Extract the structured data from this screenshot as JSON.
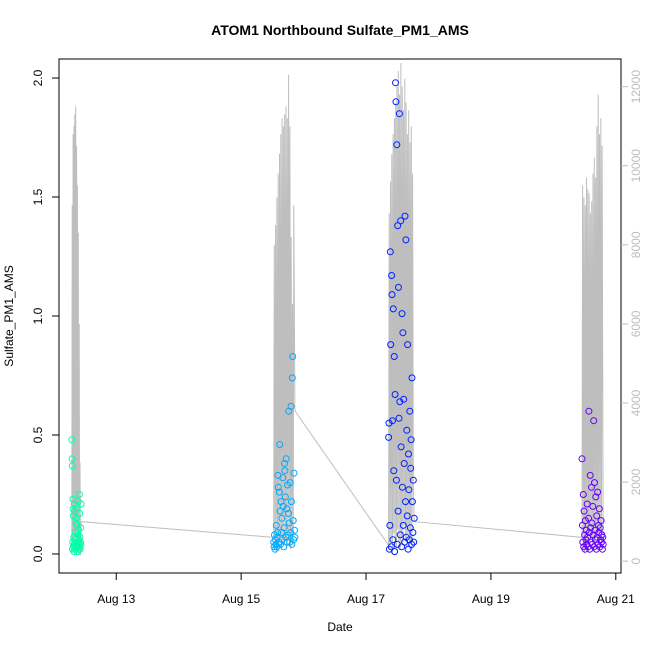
{
  "chart_data": {
    "type": "scatter",
    "title": "ATOM1 Northbound Sulfate_PM1_AMS",
    "xlabel": "Date",
    "ylabel": "Sulfate_PM1_AMS",
    "xlim": [
      "2016-08-12T02:00",
      "2016-08-21T02:00"
    ],
    "ylim": [
      -0.08,
      2.08
    ],
    "y2lim": [
      -300,
      12700
    ],
    "x_ticks": [
      {
        "date": "2016-08-13",
        "label": "Aug 13"
      },
      {
        "date": "2016-08-15",
        "label": "Aug 15"
      },
      {
        "date": "2016-08-17",
        "label": "Aug 17"
      },
      {
        "date": "2016-08-19",
        "label": "Aug 19"
      },
      {
        "date": "2016-08-21",
        "label": "Aug 21"
      }
    ],
    "y_ticks": [
      "0.0",
      "0.5",
      "1.0",
      "1.5",
      "2.0"
    ],
    "y2_ticks": [
      "0",
      "2000",
      "4000",
      "6000",
      "8000",
      "10000",
      "12000"
    ],
    "grid": false,
    "legend": "none",
    "colors": {
      "flight1": "#00ffaa",
      "flight2": "#00aaff",
      "flight3": "#0022ff",
      "flight4": "#6600ff",
      "altitude_line": "#bebebe",
      "secondary_axis": "#bebebe"
    },
    "series": [
      {
        "role": "points",
        "color": "#00ffaa",
        "x": [
          "2016-08-12T06:55",
          "2016-08-12T07:00",
          "2016-08-12T07:05",
          "2016-08-12T07:10",
          "2016-08-12T07:15",
          "2016-08-12T07:20",
          "2016-08-12T07:25",
          "2016-08-12T07:30",
          "2016-08-12T07:35",
          "2016-08-12T07:40",
          "2016-08-12T07:45",
          "2016-08-12T07:50",
          "2016-08-12T07:55",
          "2016-08-12T08:00",
          "2016-08-12T08:05",
          "2016-08-12T08:10",
          "2016-08-12T08:15",
          "2016-08-12T08:20",
          "2016-08-12T08:25",
          "2016-08-12T08:30",
          "2016-08-12T08:35",
          "2016-08-12T08:40",
          "2016-08-12T08:45",
          "2016-08-12T08:50",
          "2016-08-12T08:55",
          "2016-08-12T09:00",
          "2016-08-12T09:05",
          "2016-08-12T09:10",
          "2016-08-12T09:15",
          "2016-08-12T09:20",
          "2016-08-12T09:25",
          "2016-08-12T09:30",
          "2016-08-12T09:35",
          "2016-08-12T09:40",
          "2016-08-12T09:45",
          "2016-08-12T09:50",
          "2016-08-12T09:55",
          "2016-08-12T10:00",
          "2016-08-12T10:05",
          "2016-08-12T10:10",
          "2016-08-12T10:15",
          "2016-08-12T10:20",
          "2016-08-12T10:25",
          "2016-08-12T10:30"
        ],
        "y": [
          0.48,
          0.4,
          0.37,
          0.02,
          0.05,
          0.23,
          0.19,
          0.16,
          0.03,
          0.07,
          0.01,
          0.04,
          0.21,
          0.18,
          0.02,
          0.06,
          0.03,
          0.09,
          0.05,
          0.15,
          0.13,
          0.02,
          0.07,
          0.04,
          0.19,
          0.12,
          0.01,
          0.03,
          0.08,
          0.05,
          0.22,
          0.1,
          0.02,
          0.06,
          0.04,
          0.25,
          0.17,
          0.03,
          0.07,
          0.02,
          0.05,
          0.11,
          0.04,
          0.21
        ]
      },
      {
        "role": "points",
        "color": "#00aaff",
        "x": [
          "2016-08-15T12:30",
          "2016-08-15T12:40",
          "2016-08-15T12:50",
          "2016-08-15T13:00",
          "2016-08-15T13:10",
          "2016-08-15T13:20",
          "2016-08-15T13:30",
          "2016-08-15T13:40",
          "2016-08-15T13:50",
          "2016-08-15T14:00",
          "2016-08-15T14:10",
          "2016-08-15T14:20",
          "2016-08-15T14:30",
          "2016-08-15T14:40",
          "2016-08-15T14:50",
          "2016-08-15T15:00",
          "2016-08-15T15:10",
          "2016-08-15T15:20",
          "2016-08-15T15:30",
          "2016-08-15T15:40",
          "2016-08-15T15:50",
          "2016-08-15T16:00",
          "2016-08-15T16:10",
          "2016-08-15T16:20",
          "2016-08-15T16:30",
          "2016-08-15T16:40",
          "2016-08-15T16:50",
          "2016-08-15T17:00",
          "2016-08-15T17:10",
          "2016-08-15T17:20",
          "2016-08-15T17:30",
          "2016-08-15T17:40",
          "2016-08-15T17:50",
          "2016-08-15T18:00",
          "2016-08-15T18:10",
          "2016-08-15T18:20",
          "2016-08-15T18:30",
          "2016-08-15T18:40",
          "2016-08-15T18:50",
          "2016-08-15T19:00",
          "2016-08-15T19:10",
          "2016-08-15T19:20",
          "2016-08-15T19:30",
          "2016-08-15T19:40",
          "2016-08-15T19:50",
          "2016-08-15T20:00",
          "2016-08-15T20:10",
          "2016-08-15T20:20",
          "2016-08-15T20:30",
          "2016-08-15T20:40"
        ],
        "y": [
          0.05,
          0.03,
          0.08,
          0.02,
          0.06,
          0.04,
          0.12,
          0.03,
          0.07,
          0.09,
          0.33,
          0.28,
          0.05,
          0.26,
          0.46,
          0.18,
          0.04,
          0.22,
          0.09,
          0.15,
          0.06,
          0.32,
          0.2,
          0.03,
          0.11,
          0.38,
          0.35,
          0.24,
          0.07,
          0.4,
          0.19,
          0.05,
          0.29,
          0.08,
          0.17,
          0.6,
          0.13,
          0.05,
          0.3,
          0.09,
          0.62,
          0.22,
          0.04,
          0.74,
          0.83,
          0.14,
          0.06,
          0.34,
          0.1,
          0.07
        ]
      },
      {
        "role": "points",
        "color": "#0022ff",
        "x": [
          "2016-08-17T08:40",
          "2016-08-17T08:50",
          "2016-08-17T09:00",
          "2016-08-17T09:10",
          "2016-08-17T09:20",
          "2016-08-17T09:30",
          "2016-08-17T09:40",
          "2016-08-17T09:50",
          "2016-08-17T10:00",
          "2016-08-17T10:10",
          "2016-08-17T10:20",
          "2016-08-17T10:30",
          "2016-08-17T10:40",
          "2016-08-17T10:50",
          "2016-08-17T11:00",
          "2016-08-17T11:10",
          "2016-08-17T11:20",
          "2016-08-17T11:30",
          "2016-08-17T11:40",
          "2016-08-17T11:50",
          "2016-08-17T12:00",
          "2016-08-17T12:10",
          "2016-08-17T12:20",
          "2016-08-17T12:30",
          "2016-08-17T12:40",
          "2016-08-17T12:50",
          "2016-08-17T13:00",
          "2016-08-17T13:10",
          "2016-08-17T13:20",
          "2016-08-17T13:30",
          "2016-08-17T13:40",
          "2016-08-17T13:50",
          "2016-08-17T14:00",
          "2016-08-17T14:10",
          "2016-08-17T14:20",
          "2016-08-17T14:30",
          "2016-08-17T14:40",
          "2016-08-17T14:50",
          "2016-08-17T15:00",
          "2016-08-17T15:10",
          "2016-08-17T15:20",
          "2016-08-17T15:30",
          "2016-08-17T15:40",
          "2016-08-17T15:50",
          "2016-08-17T16:00",
          "2016-08-17T16:10",
          "2016-08-17T16:20",
          "2016-08-17T16:30",
          "2016-08-17T16:40",
          "2016-08-17T16:50",
          "2016-08-17T17:00",
          "2016-08-17T17:10",
          "2016-08-17T17:20",
          "2016-08-17T17:30",
          "2016-08-17T17:40",
          "2016-08-17T17:50",
          "2016-08-17T18:00",
          "2016-08-17T18:10",
          "2016-08-17T18:20",
          "2016-08-17T18:30"
        ],
        "y": [
          0.49,
          0.55,
          0.02,
          0.12,
          1.27,
          0.88,
          0.03,
          1.17,
          1.09,
          0.56,
          0.06,
          1.03,
          0.35,
          0.83,
          0.01,
          0.67,
          1.98,
          1.9,
          0.31,
          1.72,
          0.04,
          1.38,
          0.18,
          1.12,
          0.57,
          1.85,
          0.64,
          0.08,
          1.4,
          0.45,
          0.03,
          1.01,
          0.28,
          0.93,
          0.12,
          0.65,
          0.38,
          0.05,
          1.42,
          0.22,
          1.32,
          0.07,
          0.52,
          0.16,
          0.88,
          0.02,
          0.42,
          0.27,
          0.06,
          0.6,
          0.11,
          0.36,
          0.48,
          0.04,
          0.74,
          0.22,
          0.09,
          0.31,
          0.05,
          0.15
        ]
      },
      {
        "role": "points",
        "color": "#6600ff",
        "x": [
          "2016-08-20T11:00",
          "2016-08-20T11:10",
          "2016-08-20T11:20",
          "2016-08-20T11:30",
          "2016-08-20T11:40",
          "2016-08-20T11:50",
          "2016-08-20T12:00",
          "2016-08-20T12:10",
          "2016-08-20T12:20",
          "2016-08-20T12:30",
          "2016-08-20T12:40",
          "2016-08-20T12:50",
          "2016-08-20T13:00",
          "2016-08-20T13:10",
          "2016-08-20T13:20",
          "2016-08-20T13:30",
          "2016-08-20T13:40",
          "2016-08-20T13:50",
          "2016-08-20T14:00",
          "2016-08-20T14:10",
          "2016-08-20T14:20",
          "2016-08-20T14:30",
          "2016-08-20T14:40",
          "2016-08-20T14:50",
          "2016-08-20T15:00",
          "2016-08-20T15:10",
          "2016-08-20T15:20",
          "2016-08-20T15:30",
          "2016-08-20T15:40",
          "2016-08-20T15:50",
          "2016-08-20T16:00",
          "2016-08-20T16:10",
          "2016-08-20T16:20",
          "2016-08-20T16:30",
          "2016-08-20T16:40",
          "2016-08-20T16:50",
          "2016-08-20T17:00",
          "2016-08-20T17:10",
          "2016-08-20T17:20",
          "2016-08-20T17:30",
          "2016-08-20T17:40",
          "2016-08-20T17:50",
          "2016-08-20T18:00",
          "2016-08-20T18:10",
          "2016-08-20T18:20",
          "2016-08-20T18:30",
          "2016-08-20T18:40",
          "2016-08-20T18:50",
          "2016-08-20T19:00",
          "2016-08-20T19:10"
        ],
        "y": [
          0.4,
          0.12,
          0.05,
          0.25,
          0.03,
          0.18,
          0.08,
          0.02,
          0.14,
          0.06,
          0.1,
          0.04,
          0.21,
          0.07,
          0.03,
          0.15,
          0.6,
          0.09,
          0.02,
          0.33,
          0.11,
          0.05,
          0.28,
          0.13,
          0.04,
          0.2,
          0.08,
          0.56,
          0.03,
          0.3,
          0.1,
          0.06,
          0.24,
          0.02,
          0.16,
          0.07,
          0.26,
          0.04,
          0.12,
          0.09,
          0.19,
          0.03,
          0.11,
          0.06,
          0.14,
          0.05,
          0.08,
          0.02,
          0.07,
          0.04
        ]
      },
      {
        "role": "secondary-line",
        "axis": "right",
        "color": "#bebebe",
        "x": [
          "2016-08-12T06:55",
          "2016-08-12T07:05",
          "2016-08-12T07:15",
          "2016-08-12T07:25",
          "2016-08-12T07:35",
          "2016-08-12T07:45",
          "2016-08-12T07:55",
          "2016-08-12T08:05",
          "2016-08-12T08:15",
          "2016-08-12T08:25",
          "2016-08-12T08:35",
          "2016-08-12T08:45",
          "2016-08-12T08:55",
          "2016-08-12T09:05",
          "2016-08-12T09:15",
          "2016-08-12T09:25",
          "2016-08-12T09:35",
          "2016-08-12T09:45",
          "2016-08-12T09:55",
          "2016-08-12T10:05",
          "2016-08-12T10:15",
          "2016-08-12T10:30",
          "2016-08-15T12:30",
          "2016-08-15T12:45",
          "2016-08-15T13:00",
          "2016-08-15T13:15",
          "2016-08-15T13:30",
          "2016-08-15T13:45",
          "2016-08-15T14:00",
          "2016-08-15T14:15",
          "2016-08-15T14:30",
          "2016-08-15T14:45",
          "2016-08-15T15:00",
          "2016-08-15T15:15",
          "2016-08-15T15:30",
          "2016-08-15T15:45",
          "2016-08-15T16:00",
          "2016-08-15T16:15",
          "2016-08-15T16:30",
          "2016-08-15T16:45",
          "2016-08-15T17:00",
          "2016-08-15T17:15",
          "2016-08-15T17:30",
          "2016-08-15T17:45",
          "2016-08-15T18:00",
          "2016-08-15T18:15",
          "2016-08-15T18:30",
          "2016-08-15T18:45",
          "2016-08-15T19:00",
          "2016-08-15T19:15",
          "2016-08-15T19:30",
          "2016-08-15T19:45",
          "2016-08-15T20:00",
          "2016-08-15T20:15",
          "2016-08-15T20:40",
          "2016-08-17T08:40",
          "2016-08-17T08:55",
          "2016-08-17T09:10",
          "2016-08-17T09:25",
          "2016-08-17T09:40",
          "2016-08-17T09:55",
          "2016-08-17T10:10",
          "2016-08-17T10:25",
          "2016-08-17T10:40",
          "2016-08-17T10:55",
          "2016-08-17T11:10",
          "2016-08-17T11:25",
          "2016-08-17T11:40",
          "2016-08-17T11:55",
          "2016-08-17T12:10",
          "2016-08-17T12:25",
          "2016-08-17T12:40",
          "2016-08-17T12:55",
          "2016-08-17T13:10",
          "2016-08-17T13:25",
          "2016-08-17T13:40",
          "2016-08-17T13:55",
          "2016-08-17T14:10",
          "2016-08-17T14:25",
          "2016-08-17T14:40",
          "2016-08-17T14:55",
          "2016-08-17T15:10",
          "2016-08-17T15:25",
          "2016-08-17T15:40",
          "2016-08-17T15:55",
          "2016-08-17T16:10",
          "2016-08-17T16:25",
          "2016-08-17T16:40",
          "2016-08-17T16:55",
          "2016-08-17T17:10",
          "2016-08-17T17:25",
          "2016-08-17T17:40",
          "2016-08-17T17:55",
          "2016-08-17T18:10",
          "2016-08-17T18:30",
          "2016-08-20T11:00",
          "2016-08-20T11:15",
          "2016-08-20T11:30",
          "2016-08-20T11:45",
          "2016-08-20T12:00",
          "2016-08-20T12:15",
          "2016-08-20T12:30",
          "2016-08-20T12:45",
          "2016-08-20T13:00",
          "2016-08-20T13:15",
          "2016-08-20T13:30",
          "2016-08-20T13:45",
          "2016-08-20T14:00",
          "2016-08-20T14:15",
          "2016-08-20T14:30",
          "2016-08-20T14:45",
          "2016-08-20T15:00",
          "2016-08-20T15:15",
          "2016-08-20T15:30",
          "2016-08-20T15:45",
          "2016-08-20T16:00",
          "2016-08-20T16:15",
          "2016-08-20T16:30",
          "2016-08-20T16:45",
          "2016-08-20T17:00",
          "2016-08-20T17:15",
          "2016-08-20T17:30",
          "2016-08-20T17:45",
          "2016-08-20T18:00",
          "2016-08-20T18:15",
          "2016-08-20T18:30",
          "2016-08-20T18:45",
          "2016-08-20T19:10"
        ],
        "y": [
          200,
          9000,
          500,
          10800,
          700,
          11000,
          300,
          11300,
          600,
          11500,
          250,
          10500,
          800,
          9500,
          400,
          8300,
          150,
          6000,
          300,
          2500,
          150,
          1000,
          600,
          8000,
          300,
          8500,
          200,
          9200,
          500,
          9800,
          250,
          10300,
          700,
          10800,
          300,
          11200,
          500,
          11000,
          400,
          11300,
          600,
          11500,
          300,
          11200,
          700,
          12300,
          500,
          11000,
          300,
          8200,
          600,
          6500,
          400,
          9000,
          3800,
          400,
          8800,
          300,
          9600,
          500,
          10300,
          200,
          10800,
          700,
          11200,
          400,
          11600,
          300,
          12000,
          800,
          12400,
          500,
          11800,
          300,
          12600,
          600,
          12000,
          400,
          11400,
          900,
          12200,
          500,
          11600,
          300,
          10800,
          700,
          11400,
          300,
          10600,
          500,
          11000,
          300,
          9800,
          2000,
          1000,
          600,
          9500,
          300,
          9200,
          200,
          9000,
          500,
          9700,
          300,
          9400,
          200,
          9300,
          400,
          8800,
          600,
          9100,
          300,
          9800,
          500,
          10200,
          300,
          9700,
          600,
          11000,
          400,
          11800,
          300,
          10800,
          700,
          11200,
          500,
          10500,
          300
        ]
      }
    ]
  }
}
